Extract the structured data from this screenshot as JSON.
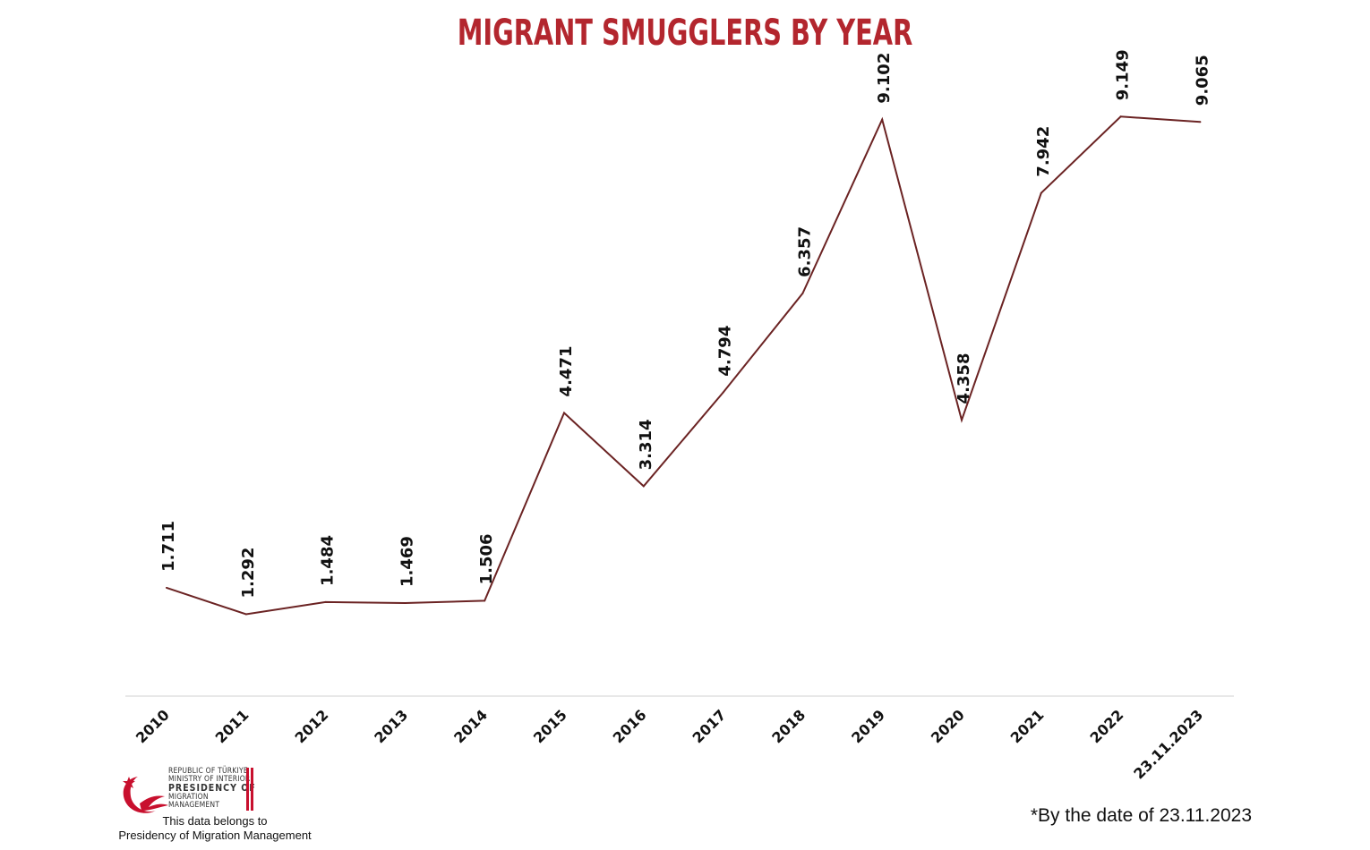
{
  "colors": {
    "title": "#b3262e",
    "line": "#6b2323",
    "text": "#111111",
    "axis": "#d9d9d9",
    "logo": "#c8102e"
  },
  "chart_data": {
    "type": "line",
    "title": "MIGRANT SMUGGLERS BY YEAR",
    "categories": [
      "2010",
      "2011",
      "2012",
      "2013",
      "2014",
      "2015",
      "2016",
      "2017",
      "2018",
      "2019",
      "2020",
      "2021",
      "2022",
      "23.11.2023"
    ],
    "series": [
      {
        "values": [
          1711,
          1292,
          1484,
          1469,
          1506,
          4471,
          3314,
          4794,
          6357,
          9102,
          4358,
          7942,
          9149,
          9065
        ],
        "labels": [
          "1.711",
          "1.292",
          "1.484",
          "1.469",
          "1.506",
          "4.471",
          "3.314",
          "4.794",
          "6.357",
          "9.102",
          "4.358",
          "7.942",
          "9.149",
          "9.065"
        ]
      }
    ],
    "ylim": [
      0,
      10000
    ],
    "grid": false,
    "legend": "none"
  },
  "logo": {
    "line1": "REPUBLIC OF TÜRKIYE",
    "line2": "MINISTRY OF INTERIOR",
    "line3": "PRESIDENCY OF",
    "line4": "MIGRATION MANAGEMENT",
    "icon": "crescent-star-bird-icon"
  },
  "caption": {
    "line1": "This data belongs to",
    "line2": "Presidency of Migration Management"
  },
  "footnote": "*By the date of 23.11.2023"
}
